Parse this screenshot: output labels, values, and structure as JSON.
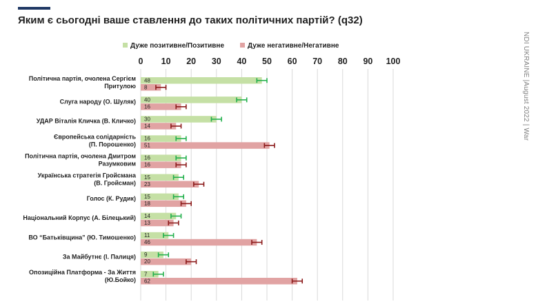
{
  "title": "Яким є сьогодні ваше ставлення до таких політичних партій? (q32)",
  "side_label": "NDI UKRAINE |August 2022 | War",
  "chart_data": {
    "type": "bar",
    "orientation": "horizontal",
    "title": "Яким є сьогодні ваше ставлення до таких політичних партій? (q32)",
    "xlim": [
      0,
      100
    ],
    "ticks": [
      0,
      10,
      20,
      30,
      40,
      50,
      60,
      70,
      80,
      90,
      100
    ],
    "tick_labels": [
      "0",
      "10",
      "20",
      "30",
      "40",
      "50",
      "60",
      "70",
      "80",
      "90",
      "100"
    ],
    "legend_position": "top",
    "error_bar_margin": 2,
    "categories": [
      [
        "Політична партія, очолена Сергієм",
        "Притулою"
      ],
      [
        "Слуга народу (О. Шуляк)"
      ],
      [
        "УДАР Віталія Кличка (В. Кличко)"
      ],
      [
        "Європейська солідарність",
        "(П. Порошенко)"
      ],
      [
        "Політична партія, очолена Дмитром",
        "Разумковим"
      ],
      [
        "Українська стратегія Гройсмана",
        "(В. Гройсман)"
      ],
      [
        "Голос (К. Рудик)"
      ],
      [
        "Національний Корпус (А. Білецький)"
      ],
      [
        "ВО “Батьківщина” (Ю. Тимошенко)"
      ],
      [
        "За Майбутнє (І. Палиця)"
      ],
      [
        "Опозиційна Платформа - За Життя",
        "(Ю.Бойко)"
      ]
    ],
    "series": [
      {
        "name": "Дуже позитивне/Позитивне",
        "color": "#c5e0a5",
        "error_color": "#22b04c",
        "values": [
          48,
          40,
          30,
          16,
          16,
          15,
          15,
          14,
          11,
          9,
          7
        ]
      },
      {
        "name": "Дуже негативне/Негативне",
        "color": "#e1a3a3",
        "error_color": "#8b1a1a",
        "values": [
          8,
          16,
          14,
          51,
          16,
          23,
          18,
          13,
          46,
          20,
          62
        ]
      }
    ]
  }
}
